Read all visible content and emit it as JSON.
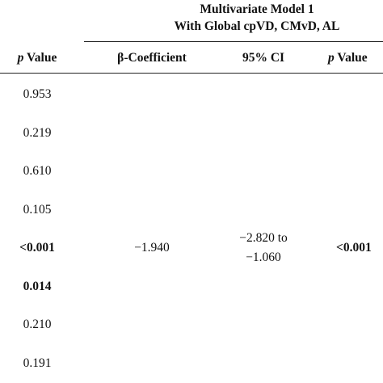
{
  "header": {
    "group_title": [
      "Multivariate Model 1",
      "With Global cpVD, CMvD, AL"
    ],
    "columns": [
      {
        "symbol": "p",
        "label": "Value"
      },
      {
        "label": "β-Coefficient"
      },
      {
        "label": "95% CI"
      },
      {
        "symbol": "p",
        "label": "Value"
      }
    ]
  },
  "table": {
    "rows": [
      {
        "p_value": "0.953"
      },
      {
        "p_value": "0.219"
      },
      {
        "p_value": "0.610"
      },
      {
        "p_value": "0.105"
      },
      {
        "p_value": "<0.001",
        "beta": "−1.940",
        "ci": [
          "−2.820 to",
          "−1.060"
        ],
        "p_value_2": "<0.001"
      },
      {
        "p_value": "0.014"
      },
      {
        "p_value": "0.210"
      },
      {
        "p_value": "0.191"
      }
    ]
  }
}
